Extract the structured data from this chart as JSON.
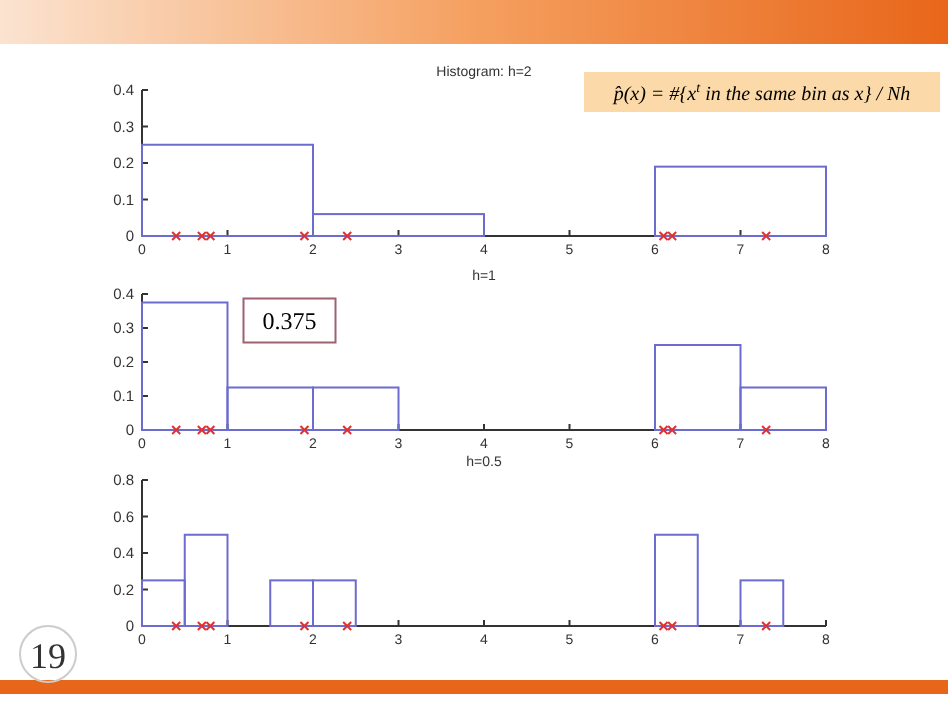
{
  "chart_data": [
    {
      "type": "histogram",
      "title": "Histogram: h=2",
      "xlim": [
        0,
        8
      ],
      "xticks": [
        0,
        1,
        2,
        3,
        4,
        5,
        6,
        7,
        8
      ],
      "ylim": [
        0,
        0.4
      ],
      "yticks": [
        0,
        0.1,
        0.2,
        0.3,
        0.4
      ],
      "marker": "cross",
      "annotations": [
        "p̂(x) = #{x$^{t}$ in the same bin as x} / Nh"
      ],
      "series": [
        {
          "type": "histogram",
          "color": "#6b6bd0",
          "bins": [
            0,
            2,
            4,
            6,
            8
          ],
          "values": [
            0.25,
            0.06,
            0,
            0.19
          ]
        },
        {
          "type": "scatter",
          "color": "#e03030",
          "x": [
            0.4,
            0.7,
            0.8,
            1.9,
            2.4,
            6.1,
            6.2,
            7.3
          ],
          "values": [
            0,
            0,
            0,
            0,
            0,
            0,
            0,
            0
          ]
        }
      ]
    },
    {
      "type": "histogram",
      "title": "h=1",
      "xlim": [
        0,
        8
      ],
      "xticks": [
        0,
        1,
        2,
        3,
        4,
        5,
        6,
        7,
        8
      ],
      "ylim": [
        0,
        0.4
      ],
      "yticks": [
        0,
        0.1,
        0.2,
        0.3,
        0.4
      ],
      "marker": "cross",
      "annotations": [
        {
          "text": "0.375",
          "x": 1,
          "y": 0.375
        }
      ],
      "series": [
        {
          "type": "histogram",
          "color": "#6b6bd0",
          "bins": [
            0,
            1,
            2,
            3,
            4,
            5,
            6,
            7,
            8
          ],
          "values": [
            0.375,
            0.125,
            0.125,
            0,
            0,
            0,
            0.25,
            0.125
          ]
        },
        {
          "type": "scatter",
          "color": "#e03030",
          "x": [
            0.4,
            0.7,
            0.8,
            1.9,
            2.4,
            6.1,
            6.2,
            7.3
          ],
          "values": [
            0,
            0,
            0,
            0,
            0,
            0,
            0,
            0
          ]
        }
      ]
    },
    {
      "type": "histogram",
      "title": "h=0.5",
      "xlim": [
        0,
        8
      ],
      "xticks": [
        0,
        1,
        2,
        3,
        4,
        5,
        6,
        7,
        8
      ],
      "ylim": [
        0,
        0.8
      ],
      "yticks": [
        0,
        0.2,
        0.4,
        0.6,
        0.8
      ],
      "marker": "cross",
      "annotations": [
        "19"
      ],
      "series": [
        {
          "type": "histogram",
          "color": "#6b6bd0",
          "bins": [
            0,
            0.5,
            1,
            1.5,
            2,
            2.5,
            3,
            3.5,
            4,
            4.5,
            5,
            5.5,
            6,
            6.5,
            7,
            7.5,
            8
          ],
          "values": [
            0.25,
            0.5,
            0,
            0.25,
            0.25,
            0,
            0,
            0,
            0,
            0,
            0,
            0,
            0.5,
            0,
            0.25,
            0
          ]
        },
        {
          "type": "scatter",
          "color": "#e03030",
          "x": [
            0.4,
            0.7,
            0.8,
            1.9,
            2.4,
            6.1,
            6.2,
            7.3
          ],
          "values": [
            0,
            0,
            0,
            0,
            0,
            0,
            0,
            0
          ]
        }
      ]
    }
  ]
}
